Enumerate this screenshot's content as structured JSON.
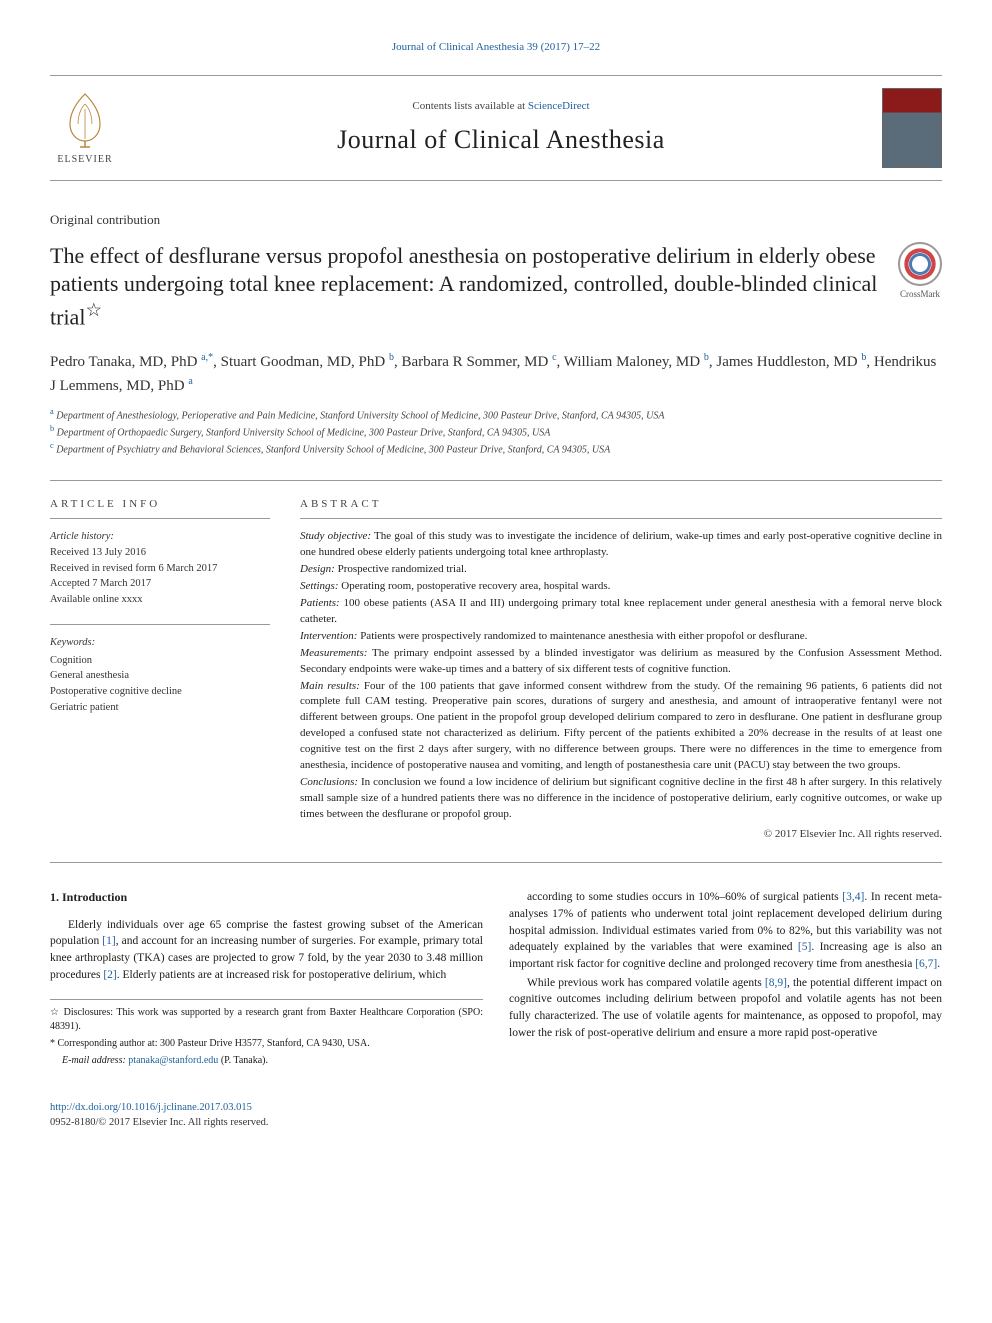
{
  "header": {
    "citation_link": "Journal of Clinical Anesthesia 39 (2017) 17–22",
    "contents_text": "Contents lists available at ",
    "contents_link": "ScienceDirect",
    "journal_name": "Journal of Clinical Anesthesia",
    "elsevier": "ELSEVIER",
    "crossmark": "CrossMark"
  },
  "article": {
    "type": "Original contribution",
    "title": "The effect of desflurane versus propofol anesthesia on postoperative delirium in elderly obese patients undergoing total knee replacement: A randomized, controlled, double-blinded clinical trial",
    "title_star": "☆"
  },
  "authors": [
    {
      "name": "Pedro Tanaka, MD, PhD",
      "aff": "a,",
      "corr": "*"
    },
    {
      "name": "Stuart Goodman, MD, PhD",
      "aff": "b"
    },
    {
      "name": "Barbara R Sommer, MD",
      "aff": "c"
    },
    {
      "name": "William Maloney, MD",
      "aff": "b"
    },
    {
      "name": "James Huddleston, MD",
      "aff": "b"
    },
    {
      "name": "Hendrikus J Lemmens, MD, PhD",
      "aff": "a"
    }
  ],
  "affiliations": [
    {
      "sup": "a",
      "text": "Department of Anesthesiology, Perioperative and Pain Medicine, Stanford University School of Medicine, 300 Pasteur Drive, Stanford, CA 94305, USA"
    },
    {
      "sup": "b",
      "text": "Department of Orthopaedic Surgery, Stanford University School of Medicine, 300 Pasteur Drive, Stanford, CA 94305, USA"
    },
    {
      "sup": "c",
      "text": "Department of Psychiatry and Behavioral Sciences, Stanford University School of Medicine, 300 Pasteur Drive, Stanford, CA 94305, USA"
    }
  ],
  "info": {
    "section_label": "article info",
    "history_label": "Article history:",
    "received": "Received 13 July 2016",
    "revised": "Received in revised form 6 March 2017",
    "accepted": "Accepted 7 March 2017",
    "online": "Available online xxxx",
    "keywords_label": "Keywords:",
    "keywords": [
      "Cognition",
      "General anesthesia",
      "Postoperative cognitive decline",
      "Geriatric patient"
    ]
  },
  "abstract": {
    "section_label": "abstract",
    "items": [
      {
        "label": "Study objective:",
        "text": " The goal of this study was to investigate the incidence of delirium, wake-up times and early post-operative cognitive decline in one hundred obese elderly patients undergoing total knee arthroplasty."
      },
      {
        "label": "Design:",
        "text": " Prospective randomized trial."
      },
      {
        "label": "Settings:",
        "text": " Operating room, postoperative recovery area, hospital wards."
      },
      {
        "label": "Patients:",
        "text": " 100 obese patients (ASA II and III) undergoing primary total knee replacement under general anesthesia with a femoral nerve block catheter."
      },
      {
        "label": "Intervention:",
        "text": " Patients were prospectively randomized to maintenance anesthesia with either propofol or desflurane."
      },
      {
        "label": "Measurements:",
        "text": " The primary endpoint assessed by a blinded investigator was delirium as measured by the Confusion Assessment Method. Secondary endpoints were wake-up times and a battery of six different tests of cognitive function."
      },
      {
        "label": "Main results:",
        "text": " Four of the 100 patients that gave informed consent withdrew from the study. Of the remaining 96 patients, 6 patients did not complete full CAM testing. Preoperative pain scores, durations of surgery and anesthesia, and amount of intraoperative fentanyl were not different between groups. One patient in the propofol group developed delirium compared to zero in desflurane. One patient in desflurane group developed a confused state not characterized as delirium. Fifty percent of the patients exhibited a 20% decrease in the results of at least one cognitive test on the first 2 days after surgery, with no difference between groups. There were no differences in the time to emergence from anesthesia, incidence of postoperative nausea and vomiting, and length of postanesthesia care unit (PACU) stay between the two groups."
      },
      {
        "label": "Conclusions:",
        "text": " In conclusion we found a low incidence of delirium but significant cognitive decline in the first 48 h after surgery. In this relatively small sample size of a hundred patients there was no difference in the incidence of postoperative delirium, early cognitive outcomes, or wake up times between the desflurane or propofol group."
      }
    ],
    "copyright": "© 2017 Elsevier Inc. All rights reserved."
  },
  "body": {
    "heading": "1. Introduction",
    "p1a": "Elderly individuals over age 65 comprise the fastest growing subset of the American population ",
    "ref1": "[1]",
    "p1b": ", and account for an increasing number of surgeries. For example, primary total knee arthroplasty (TKA) cases are projected to grow 7 fold, by the year 2030 to 3.48 million procedures ",
    "ref2": "[2]",
    "p1c": ". Elderly patients are at increased risk for postoperative delirium, which",
    "p2a": "according to some studies occurs in 10%–60% of surgical patients ",
    "ref34": "[3,4]",
    "p2b": ". In recent meta-analyses 17% of patients who underwent total joint replacement developed delirium during hospital admission. Individual estimates varied from 0% to 82%, but this variability was not adequately explained by the variables that were examined ",
    "ref5": "[5]",
    "p2c": ". Increasing age is also an important risk factor for cognitive decline and prolonged recovery time from anesthesia ",
    "ref67": "[6,7]",
    "p2d": ".",
    "p3a": "While previous work has compared volatile agents ",
    "ref89": "[8,9]",
    "p3b": ", the potential different impact on cognitive outcomes including delirium between propofol and volatile agents has not been fully characterized. The use of volatile agents for maintenance, as opposed to propofol, may lower the risk of post-operative delirium and ensure a more rapid post-operative"
  },
  "footnotes": {
    "disclosure_sym": "☆",
    "disclosure": " Disclosures: This work was supported by a research grant from Baxter Healthcare Corporation (SPO: 48391).",
    "corr_sym": "*",
    "corr": " Corresponding author at: 300 Pasteur Drive H3577, Stanford, CA 9430, USA.",
    "email_label": "E-mail address: ",
    "email": "ptanaka@stanford.edu",
    "email_suffix": " (P. Tanaka)."
  },
  "footer": {
    "doi": "http://dx.doi.org/10.1016/j.jclinane.2017.03.015",
    "issn": "0952-8180/© 2017 Elsevier Inc. All rights reserved."
  },
  "colors": {
    "link": "#1e5f9e",
    "text": "#1a1a1a",
    "border": "#999999"
  }
}
